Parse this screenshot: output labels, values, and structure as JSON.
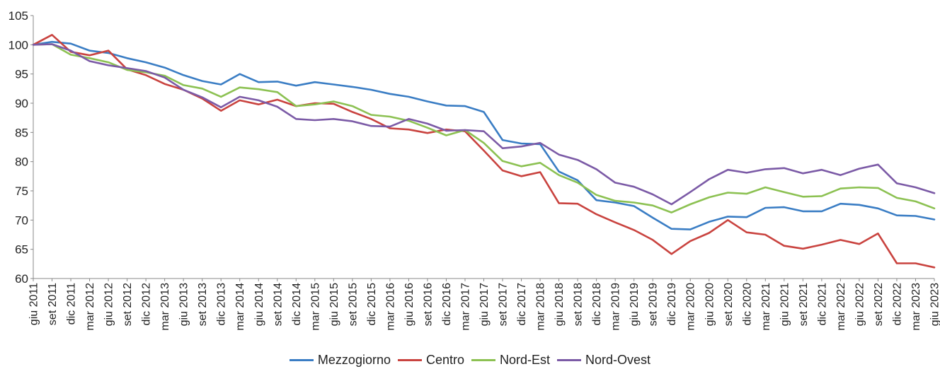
{
  "chart_data": {
    "type": "line",
    "title": "",
    "xlabel": "",
    "ylabel": "",
    "ylim": [
      60,
      105
    ],
    "yticks": [
      60,
      65,
      70,
      75,
      80,
      85,
      90,
      95,
      100,
      105
    ],
    "grid": false,
    "legend_position": "bottom",
    "categories": [
      "giu 2011",
      "set 2011",
      "dic 2011",
      "mar 2012",
      "giu 2012",
      "set 2012",
      "dic 2012",
      "mar 2013",
      "giu 2013",
      "set 2013",
      "dic 2013",
      "mar 2014",
      "giu 2014",
      "set 2014",
      "dic 2014",
      "mar 2015",
      "giu 2015",
      "set 2015",
      "dic 2015",
      "mar 2016",
      "giu 2016",
      "set 2016",
      "dic 2016",
      "mar 2017",
      "giu 2017",
      "set 2017",
      "dic 2017",
      "mar 2018",
      "giu 2018",
      "set 2018",
      "dic 2018",
      "mar 2019",
      "giu 2019",
      "set 2019",
      "dic 2019",
      "mar 2020",
      "giu 2020",
      "set 2020",
      "dic 2020",
      "mar 2021",
      "giu 2021",
      "set 2021",
      "dic 2021",
      "mar 2022",
      "giu 2022",
      "set 2022",
      "dic 2022",
      "mar 2023",
      "giu 2023"
    ],
    "series": [
      {
        "name": "Mezzogiorno",
        "color": "#3a7dc4",
        "values": [
          100.0,
          100.5,
          100.2,
          99.0,
          98.6,
          97.7,
          97.0,
          96.1,
          94.8,
          93.8,
          93.2,
          95.0,
          93.6,
          93.7,
          93.0,
          93.6,
          93.2,
          92.8,
          92.3,
          91.6,
          91.1,
          90.3,
          89.6,
          89.5,
          88.5,
          83.7,
          83.1,
          83.0,
          78.3,
          76.8,
          73.4,
          73.0,
          72.4,
          70.4,
          68.5,
          68.4,
          69.7,
          70.6,
          70.5,
          72.1,
          72.2,
          71.5,
          71.5,
          72.8,
          72.6,
          72.0,
          70.8,
          70.7,
          70.1
        ]
      },
      {
        "name": "Centro",
        "color": "#c9433f",
        "values": [
          100.0,
          101.7,
          98.8,
          98.2,
          99.0,
          95.8,
          94.8,
          93.3,
          92.3,
          90.8,
          88.7,
          90.5,
          89.8,
          90.6,
          89.5,
          90.0,
          89.9,
          88.5,
          87.3,
          85.7,
          85.5,
          84.9,
          85.5,
          85.2,
          81.9,
          78.5,
          77.5,
          78.2,
          72.9,
          72.8,
          71.0,
          69.6,
          68.3,
          66.6,
          64.2,
          66.4,
          67.8,
          70.0,
          67.9,
          67.5,
          65.6,
          65.1,
          65.8,
          66.6,
          65.9,
          67.7,
          62.6,
          62.6,
          61.9
        ]
      },
      {
        "name": "Nord-Est",
        "color": "#8cc152",
        "values": [
          100.0,
          100.1,
          98.3,
          97.7,
          97.0,
          95.7,
          95.3,
          94.7,
          93.1,
          92.5,
          91.1,
          92.7,
          92.4,
          91.9,
          89.5,
          89.8,
          90.3,
          89.5,
          88.0,
          87.7,
          87.0,
          85.8,
          84.5,
          85.4,
          83.2,
          80.1,
          79.2,
          79.8,
          77.7,
          76.4,
          74.3,
          73.3,
          73.0,
          72.5,
          71.3,
          72.7,
          73.9,
          74.7,
          74.5,
          75.6,
          74.8,
          74.0,
          74.1,
          75.4,
          75.6,
          75.5,
          73.8,
          73.2,
          72.0
        ]
      },
      {
        "name": "Nord-Ovest",
        "color": "#7b5aa6",
        "values": [
          100.0,
          100.1,
          99.0,
          97.2,
          96.5,
          96.0,
          95.5,
          94.4,
          92.3,
          91.0,
          89.3,
          91.1,
          90.5,
          89.4,
          87.3,
          87.1,
          87.3,
          86.9,
          86.1,
          86.0,
          87.3,
          86.5,
          85.3,
          85.4,
          85.2,
          82.3,
          82.6,
          83.2,
          81.2,
          80.3,
          78.7,
          76.4,
          75.7,
          74.4,
          72.7,
          74.8,
          77.0,
          78.6,
          78.1,
          78.7,
          78.9,
          78.0,
          78.6,
          77.7,
          78.8,
          79.5,
          76.3,
          75.6,
          74.6
        ]
      }
    ]
  }
}
